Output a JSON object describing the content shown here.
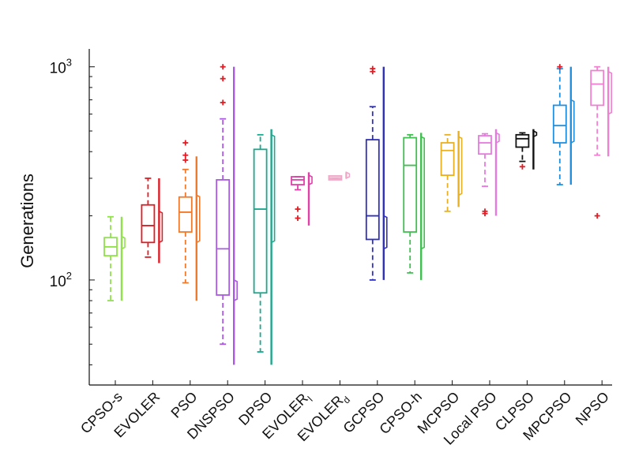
{
  "chart_data": {
    "type": "box",
    "title": "",
    "xlabel": "",
    "ylabel": "Generations",
    "yscale": "log",
    "ylim": [
      33,
      1100
    ],
    "yticks": [
      {
        "base": "10",
        "exp": "2",
        "value": 100
      },
      {
        "base": "10",
        "exp": "3",
        "value": 1000
      }
    ],
    "categories": [
      "CPSO-s",
      "EVOLER",
      "PSO",
      "DNSPSO",
      "DPSO",
      "EVOLER",
      "EVOLER",
      "GCPSO",
      "CPSO-h",
      "MCPSO",
      "Local PSO",
      "CLPSO",
      "MPCPSO",
      "NPSO"
    ],
    "subscripts": [
      "",
      "",
      "",
      "",
      "",
      "l",
      "d",
      "",
      "",
      "",
      "",
      "",
      "",
      ""
    ],
    "colors": [
      "#8fe24a",
      "#e01c24",
      "#f07a2c",
      "#a95ae0",
      "#1aa88e",
      "#e040a8",
      "#f0a8c8",
      "#3030c0",
      "#40c050",
      "#e8b020",
      "#e878e0",
      "#111111",
      "#2090e0",
      "#f080d0"
    ],
    "boxes": [
      {
        "min": 80,
        "q1": 130,
        "median": 143,
        "q3": 158,
        "max": 198,
        "outliers": []
      },
      {
        "min": 128,
        "q1": 150,
        "median": 180,
        "q3": 225,
        "max": 300,
        "outliers": []
      },
      {
        "min": 97,
        "q1": 168,
        "median": 208,
        "q3": 245,
        "max": 330,
        "outliers": [
          365,
          385,
          440
        ]
      },
      {
        "min": 50,
        "q1": 85,
        "median": 140,
        "q3": 295,
        "max": 570,
        "outliers": [
          680,
          880,
          1000
        ]
      },
      {
        "min": 46,
        "q1": 87,
        "median": 215,
        "q3": 410,
        "max": 480,
        "outliers": []
      },
      {
        "min": 265,
        "q1": 280,
        "median": 295,
        "q3": 305,
        "max": 305,
        "outliers": [
          195,
          215
        ]
      },
      {
        "min": 300,
        "q1": 300,
        "median": 300,
        "q3": 300,
        "max": 300,
        "outliers": []
      },
      {
        "min": 100,
        "q1": 155,
        "median": 200,
        "q3": 455,
        "max": 650,
        "outliers": [
          950,
          980
        ]
      },
      {
        "min": 108,
        "q1": 168,
        "median": 345,
        "q3": 465,
        "max": 480,
        "outliers": []
      },
      {
        "min": 210,
        "q1": 310,
        "median": 405,
        "q3": 440,
        "max": 480,
        "outliers": []
      },
      {
        "min": 275,
        "q1": 390,
        "median": 440,
        "q3": 475,
        "max": 485,
        "outliers": [
          210,
          205
        ]
      },
      {
        "min": 360,
        "q1": 420,
        "median": 460,
        "q3": 480,
        "max": 490,
        "outliers": [
          340
        ]
      },
      {
        "min": 280,
        "q1": 440,
        "median": 530,
        "q3": 660,
        "max": 980,
        "outliers": [
          1000
        ]
      },
      {
        "min": 385,
        "q1": 660,
        "median": 830,
        "q3": 960,
        "max": 1000,
        "outliers": [
          200
        ]
      }
    ],
    "side_distributions": [
      {
        "min": 80,
        "max": 198,
        "mid_low": 140,
        "mid_high": 160
      },
      {
        "min": 120,
        "max": 300,
        "mid_low": 150,
        "mid_high": 210
      },
      {
        "min": 80,
        "max": 380,
        "mid_low": 150,
        "mid_high": 250
      },
      {
        "min": 40,
        "max": 1000,
        "mid_low": 80,
        "mid_high": 100
      },
      {
        "min": 40,
        "max": 510,
        "mid_low": 150,
        "mid_high": 480
      },
      {
        "min": 180,
        "max": 320,
        "mid_low": 280,
        "mid_high": 310
      },
      {
        "min": 300,
        "max": 320,
        "mid_low": 300,
        "mid_high": 320
      },
      {
        "min": 100,
        "max": 1000,
        "mid_low": 140,
        "mid_high": 200
      },
      {
        "min": 100,
        "max": 490,
        "mid_low": 140,
        "mid_high": 470
      },
      {
        "min": 220,
        "max": 500,
        "mid_low": 250,
        "mid_high": 470
      },
      {
        "min": 200,
        "max": 510,
        "mid_low": 440,
        "mid_high": 490
      },
      {
        "min": 330,
        "max": 510,
        "mid_low": 470,
        "mid_high": 500
      },
      {
        "min": 280,
        "max": 1000,
        "mid_low": 440,
        "mid_high": 700
      },
      {
        "min": 380,
        "max": 1000,
        "mid_low": 600,
        "mid_high": 950
      }
    ]
  }
}
